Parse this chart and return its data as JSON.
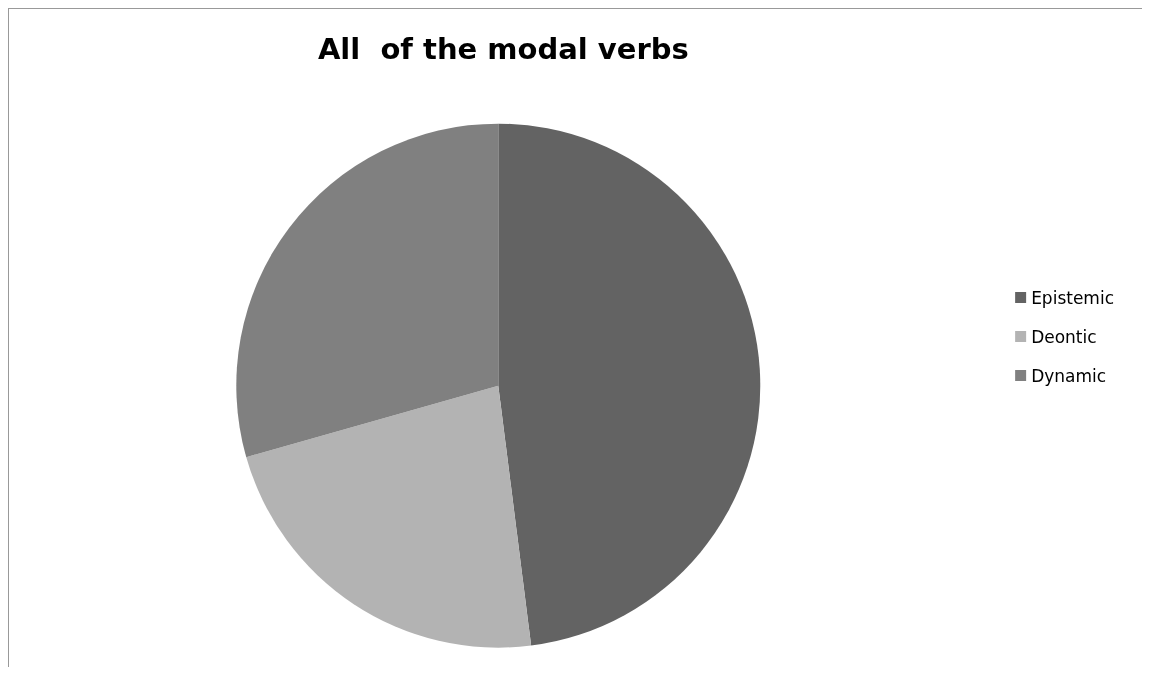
{
  "chart_data": {
    "type": "pie",
    "title": "All  of the modal verbs",
    "categories": [
      "Epistemic",
      "Deontic",
      "Dynamic"
    ],
    "values": [
      48,
      22.6,
      29.4
    ],
    "colors": [
      "#636363",
      "#b3b3b3",
      "#808080"
    ],
    "legend": "right"
  }
}
